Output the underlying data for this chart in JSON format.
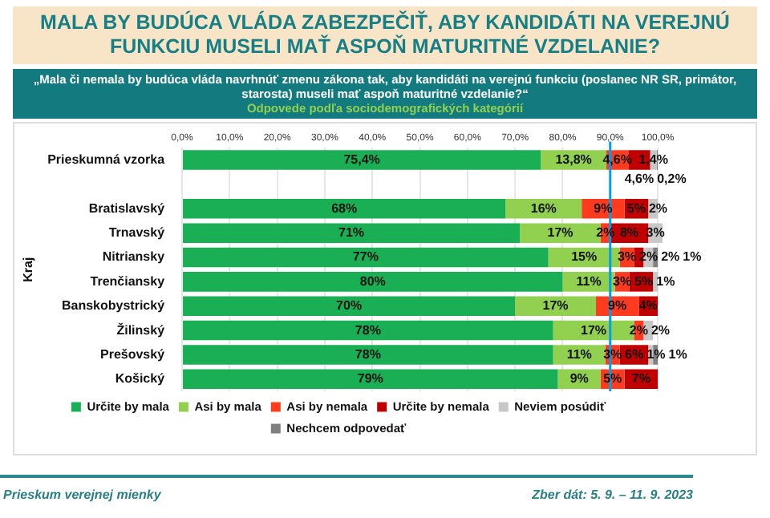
{
  "chart_data": {
    "type": "bar",
    "orientation": "horizontal",
    "stacked": true,
    "title": "MALA BY BUDÚCA VLÁDA ZABEZPEČIŤ, ABY KANDIDÁTI NA VEREJNÚ FUNKCIU MUSELI MAŤ ASPOŇ MATURITNÉ VZDELANIE?",
    "subtitle": "„Mala či nemala by budúca vláda navrhnúť zmenu zákona tak, aby kandidáti na verejnú funkciu (poslanec NR SR, primátor, starosta) museli mať aspoň maturitné vzdelanie?“",
    "annotations": [
      "Odpovede podľa sociodemografických kategórií",
      "Prieskum verejnej mienky",
      "Zber dát: 5. 9. – 11. 9. 2023"
    ],
    "ylabel": "Kraj",
    "categories": [
      "Prieskumná vzorka",
      null,
      "Bratislavský",
      "Trnavský",
      "Nitriansky",
      "Trenčiansky",
      "Banskobystrický",
      "Žilinský",
      "Prešovský",
      "Košický"
    ],
    "series": [
      {
        "name": "Určite by mala",
        "color": "#1aaf54",
        "values": [
          75.4,
          null,
          68,
          71,
          77,
          80,
          70,
          78,
          78,
          79
        ],
        "value_labels": [
          "75,4%",
          null,
          "68%",
          "71%",
          "77%",
          "80%",
          "70%",
          "78%",
          "78%",
          "79%"
        ]
      },
      {
        "name": "Asi by mala",
        "color": "#92d050",
        "values": [
          13.8,
          null,
          16,
          17,
          15,
          11,
          17,
          17,
          11,
          9
        ],
        "value_labels": [
          "13,8%",
          null,
          "16%",
          "17%",
          "15%",
          "11%",
          "17%",
          "17%",
          "11%",
          "9%"
        ]
      },
      {
        "name": "Asi by nemala",
        "color": "#ff3b1f",
        "values": [
          4.6,
          null,
          9,
          2,
          3,
          3,
          9,
          2,
          3,
          5
        ],
        "value_labels": [
          "4,6%",
          null,
          "9%",
          "2%",
          "3%",
          "3%",
          "9%",
          "2%",
          "3%",
          "5%"
        ]
      },
      {
        "name": "Určite by nemala",
        "color": "#c00000",
        "values": [
          4.6,
          null,
          5,
          8,
          2,
          5,
          4,
          null,
          6,
          7
        ],
        "value_labels": [
          "4,6%",
          null,
          "5%",
          "8%",
          "2%",
          "5%",
          "4%",
          null,
          "6%",
          "7%"
        ]
      },
      {
        "name": "Neviem posúdiť",
        "color": "#c8c8c8",
        "values": [
          1.4,
          null,
          2,
          3,
          2,
          1,
          null,
          2,
          1,
          null
        ],
        "value_labels": [
          "1,4%",
          null,
          "2%",
          "3%",
          "2%",
          "1%",
          null,
          "2%",
          "1%",
          null
        ]
      },
      {
        "name": "Nechcem odpovedať",
        "color": "#808080",
        "values": [
          0.2,
          null,
          null,
          null,
          1,
          null,
          null,
          null,
          1,
          null
        ],
        "value_labels": [
          "0,2%",
          null,
          null,
          null,
          "1%",
          null,
          null,
          null,
          "1%",
          null
        ]
      }
    ],
    "xlim": [
      0,
      101
    ],
    "xticks": [
      {
        "value": 0,
        "label": "0,0%"
      },
      {
        "value": 10,
        "label": "10,0%"
      },
      {
        "value": 20,
        "label": "20,0%"
      },
      {
        "value": 30,
        "label": "30,0%"
      },
      {
        "value": 40,
        "label": "40,0%"
      },
      {
        "value": 50,
        "label": "50,0%"
      },
      {
        "value": 60,
        "label": "60,0%"
      },
      {
        "value": 70,
        "label": "70,0%"
      },
      {
        "value": 80,
        "label": "80,0%"
      },
      {
        "value": 90,
        "label": "90,0%"
      },
      {
        "value": 100,
        "label": "100,0%"
      }
    ],
    "ref_lines": [
      {
        "axis": "x",
        "value": 90,
        "color": "#00a0e9"
      }
    ],
    "grid": "x",
    "legend": "bottom"
  }
}
